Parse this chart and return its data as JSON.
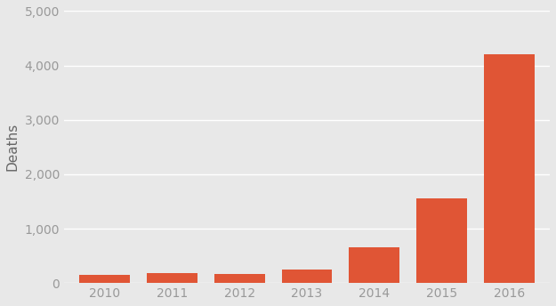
{
  "years": [
    "2010",
    "2011",
    "2012",
    "2013",
    "2014",
    "2015",
    "2016"
  ],
  "values": [
    150,
    180,
    160,
    250,
    650,
    1550,
    4200
  ],
  "bar_color": "#e05535",
  "background_color": "#e8e8e8",
  "plot_bg_color": "#e8e8e8",
  "ylabel": "Deaths",
  "ylim": [
    0,
    5000
  ],
  "yticks": [
    0,
    1000,
    2000,
    3000,
    4000,
    5000
  ],
  "grid_color": "#ffffff",
  "grid_linewidth": 1.0,
  "bar_width": 0.75,
  "tick_color": "#999999",
  "tick_fontsize": 10,
  "ylabel_fontsize": 11,
  "ylabel_color": "#666666"
}
